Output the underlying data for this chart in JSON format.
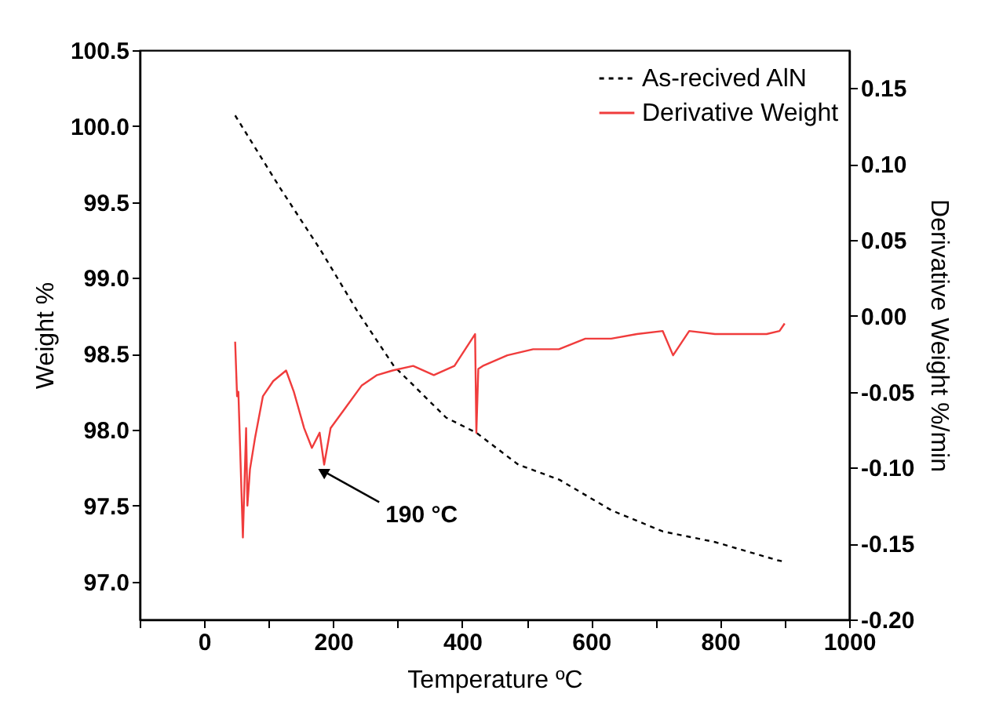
{
  "chart_data": {
    "type": "line",
    "xlabel": "Temperature ºC",
    "ylabel": "Weight %",
    "y2label": "Derivative Weight %/min",
    "xlim": [
      -100,
      1000
    ],
    "xticks": [
      {
        "value": -100,
        "label": null
      },
      0,
      {
        "value": 100,
        "label": null
      },
      200,
      {
        "value": 300,
        "label": null
      },
      400,
      {
        "value": 500,
        "label": null
      },
      600,
      {
        "value": 700,
        "label": null
      },
      800,
      {
        "value": 900,
        "label": null
      },
      1000
    ],
    "ylim": [
      96.75,
      100.5
    ],
    "yticks": [
      {
        "value": 97,
        "label": "97.0"
      },
      97.5,
      {
        "value": 98,
        "label": "98.0"
      },
      98.5,
      {
        "value": 99,
        "label": "99.0"
      },
      99.5,
      {
        "value": 100,
        "label": "100.0"
      },
      100.5
    ],
    "y2lim": [
      -0.2,
      0.175
    ],
    "y2ticks": [
      {
        "value": -0.2,
        "label": "-0.20"
      },
      -0.15,
      {
        "value": -0.1,
        "label": "-0.10"
      },
      -0.05,
      {
        "value": 0,
        "label": "0.00"
      },
      0.05,
      {
        "value": 0.1,
        "label": "0.10"
      },
      0.15
    ],
    "grid": false,
    "legend": "top right",
    "marker": "none",
    "series": [
      {
        "name": "As-recived AlN",
        "color": "#000000",
        "line_style": "dotted",
        "x": [
          48,
          118,
          181,
          239,
          294,
          375,
          422,
          487,
          551,
          631,
          711,
          792,
          889,
          900
        ],
        "values": [
          100.07,
          99.59,
          99.18,
          98.77,
          98.42,
          98.08,
          97.98,
          97.77,
          97.67,
          97.47,
          97.33,
          97.26,
          97.14,
          97.13
        ]
      },
      {
        "name": "Derivative Weight",
        "color": "#f03c3c",
        "line_style": "solid",
        "axis": "y2",
        "x": [
          48,
          51,
          53,
          60,
          65,
          67,
          71,
          79,
          91,
          107,
          127,
          139,
          155,
          167,
          179,
          186,
          196,
          220,
          244,
          268,
          292,
          324,
          356,
          388,
          420,
          422,
          425,
          432,
          470,
          510,
          550,
          591,
          631,
          671,
          711,
          727,
          752,
          792,
          832,
          872,
          892,
          900
        ],
        "values": [
          -0.017,
          -0.053,
          -0.05,
          -0.146,
          -0.074,
          -0.125,
          -0.101,
          -0.08,
          -0.053,
          -0.043,
          -0.036,
          -0.05,
          -0.074,
          -0.087,
          -0.077,
          -0.098,
          -0.074,
          -0.06,
          -0.046,
          -0.039,
          -0.036,
          -0.033,
          -0.039,
          -0.033,
          -0.012,
          -0.077,
          -0.035,
          -0.033,
          -0.026,
          -0.022,
          -0.022,
          -0.015,
          -0.015,
          -0.012,
          -0.01,
          -0.026,
          -0.01,
          -0.012,
          -0.012,
          -0.012,
          -0.01,
          -0.005
        ]
      }
    ],
    "annotations": [
      {
        "text": "190 °C",
        "x": 174,
        "y": 97.75
      }
    ]
  }
}
